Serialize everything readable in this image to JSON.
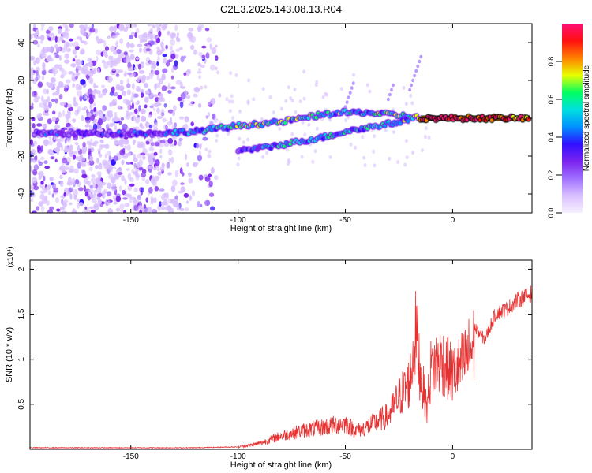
{
  "title": "C2E3.2025.143.08.13.R04",
  "chart_data": [
    {
      "type": "heatmap",
      "xlabel": "Height of straight line (km)",
      "ylabel": "Frequency (Hz)",
      "xlim": [
        -197,
        37
      ],
      "ylim": [
        -50,
        50
      ],
      "xticks": [
        -150,
        -100,
        -50,
        0
      ],
      "yticks": [
        -40,
        -20,
        0,
        20,
        40
      ],
      "colorbar": {
        "label": "Normalized spectral amplitude",
        "range": [
          0,
          1
        ],
        "ticks": [
          0.0,
          0.2,
          0.4,
          0.6,
          0.8
        ],
        "colors": [
          "#f7f0ff",
          "#d9c0ff",
          "#a070ff",
          "#7a22ee",
          "#3010ff",
          "#0090ff",
          "#00e0e0",
          "#00ff60",
          "#e8ff00",
          "#ff8000",
          "#ff1010",
          "#ff1075"
        ]
      },
      "ridges": [
        {
          "x": [
            -195,
            -160,
            -140,
            -120,
            -100,
            -80,
            -70,
            -60,
            -50,
            -40,
            -30,
            -20,
            -15
          ],
          "y": [
            -8,
            -8,
            -8,
            -7,
            -4,
            -2,
            0,
            2,
            3,
            3,
            2,
            1,
            0
          ],
          "amplitude": [
            0.25,
            0.25,
            0.3,
            0.45,
            0.55,
            0.6,
            0.55,
            0.6,
            0.55,
            0.5,
            0.6,
            0.55,
            0.65
          ]
        },
        {
          "x": [
            -100,
            -90,
            -80,
            -70,
            -60,
            -50,
            -40,
            -30,
            -20
          ],
          "y": [
            -17,
            -16,
            -14,
            -12,
            -10,
            -7,
            -5,
            -3,
            -1
          ],
          "amplitude": [
            0.3,
            0.4,
            0.45,
            0.5,
            0.5,
            0.5,
            0.55,
            0.55,
            0.55
          ]
        },
        {
          "x": [
            -15,
            -10,
            0,
            10,
            20,
            30,
            36
          ],
          "y": [
            0,
            0,
            0,
            0,
            0,
            0,
            0
          ],
          "amplitude": [
            0.9,
            1.0,
            1.0,
            0.95,
            0.95,
            0.9,
            0.9
          ]
        }
      ],
      "noise_region_x": [
        -197,
        -120
      ]
    },
    {
      "type": "line",
      "xlabel": "Height of straight line (km)",
      "ylabel": "SNR (10 * v/v)",
      "y_multiplier": "(x10⁴)",
      "xlim": [
        -197,
        37
      ],
      "ylim": [
        0,
        2.1
      ],
      "xticks": [
        -150,
        -100,
        -50,
        0
      ],
      "yticks": [
        0.5,
        1.0,
        1.5,
        2.0
      ],
      "series": [
        {
          "color": "#e83030",
          "x": [
            -197,
            -150,
            -120,
            -100,
            -90,
            -80,
            -70,
            -60,
            -50,
            -45,
            -40,
            -30,
            -25,
            -20,
            -17,
            -15,
            -12,
            -10,
            -5,
            0,
            5,
            10,
            15,
            20,
            25,
            30,
            37
          ],
          "y": [
            0.02,
            0.02,
            0.02,
            0.03,
            0.08,
            0.18,
            0.25,
            0.3,
            0.35,
            0.25,
            0.3,
            0.45,
            0.7,
            0.9,
            1.6,
            1.0,
            0.55,
            1.1,
            1.2,
            1.0,
            1.15,
            1.4,
            1.25,
            1.55,
            1.6,
            1.7,
            1.78
          ]
        }
      ]
    }
  ]
}
